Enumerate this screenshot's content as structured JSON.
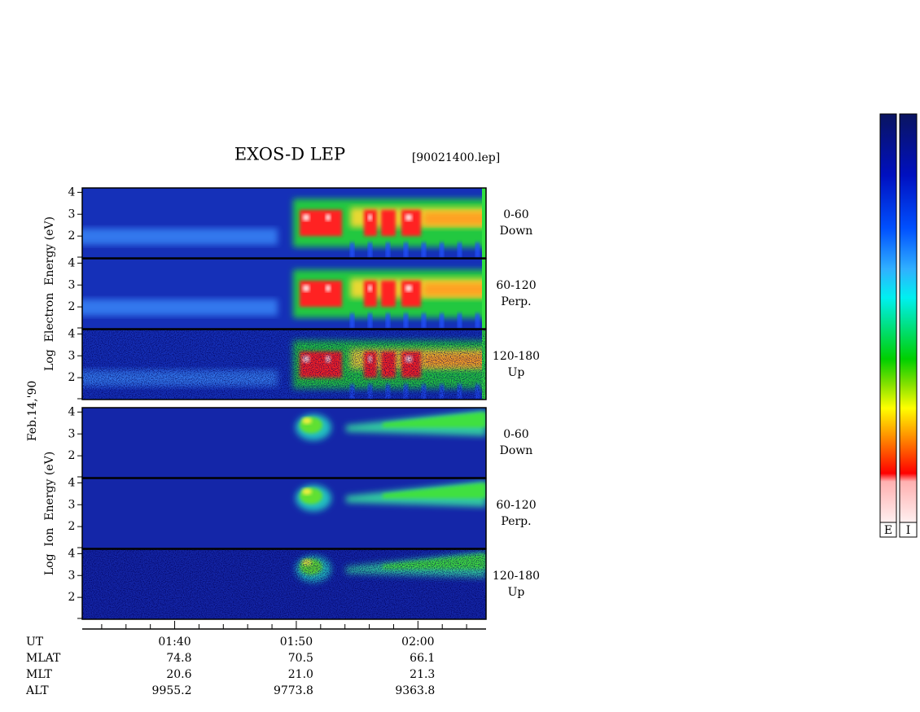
{
  "header": {
    "title": "EXOS-D LEP",
    "file": "[90021400.lep]",
    "date": "Feb.14,'90"
  },
  "groups": [
    {
      "axis_label": "Log  Electron  Energy (eV)",
      "ylim": [
        1,
        4.2
      ],
      "yticks": [
        2,
        3,
        4
      ],
      "panels": [
        {
          "angle": "0-60",
          "direction": "Down"
        },
        {
          "angle": "60-120",
          "direction": "Perp."
        },
        {
          "angle": "120-180",
          "direction": "Up"
        }
      ]
    },
    {
      "axis_label": "Log  Ion  Energy (eV)",
      "ylim": [
        1,
        4.2
      ],
      "yticks": [
        2,
        3,
        4
      ],
      "panels": [
        {
          "angle": "0-60",
          "direction": "Down"
        },
        {
          "angle": "60-120",
          "direction": "Perp."
        },
        {
          "angle": "120-180",
          "direction": "Up"
        }
      ]
    }
  ],
  "time_axis": {
    "xlim": [
      92.4,
      125.6
    ],
    "xticks": [
      {
        "value": 100,
        "label": "01:40"
      },
      {
        "value": 110,
        "label": "01:50"
      },
      {
        "value": 120,
        "label": "02:00"
      }
    ],
    "minor_ticks": [
      94,
      96,
      98,
      102,
      104,
      106,
      108,
      112,
      114,
      116,
      118,
      122,
      124
    ]
  },
  "ephemeris": {
    "labels": [
      "UT",
      "MLAT",
      "MLT",
      "ALT"
    ],
    "rows": [
      [
        "74.8",
        "70.5",
        "66.1"
      ],
      [
        "20.6",
        "21.0",
        "21.3"
      ],
      [
        "9955.2",
        "9773.8",
        "9363.8"
      ]
    ]
  },
  "colorbars": [
    "E",
    "I"
  ]
}
